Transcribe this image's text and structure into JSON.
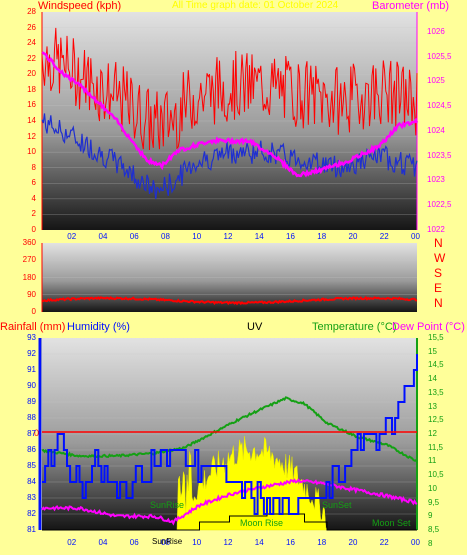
{
  "panel1": {
    "left_title": "Windspeed (kph)",
    "center_title": "All Time graph date: 01 October 2024",
    "right_title": "Barometer (mb)",
    "left_ticks": [
      "0",
      "2",
      "4",
      "6",
      "8",
      "10",
      "12",
      "14",
      "16",
      "18",
      "20",
      "22",
      "24",
      "26",
      "28"
    ],
    "right_ticks": [
      "1022",
      "1022,5",
      "1023",
      "1023,5",
      "1024",
      "1024,5",
      "1025",
      "1025,5",
      "1026"
    ],
    "colors": {
      "gust": "#ff0000",
      "avg": "#1f2fd0",
      "baro": "#ff00ff"
    }
  },
  "panel2": {
    "left_ticks": [
      "0",
      "90",
      "180",
      "270",
      "360"
    ],
    "compass": [
      "N",
      "W",
      "S",
      "E",
      "N"
    ],
    "colors": {
      "dir": "#ff0000"
    }
  },
  "panel3": {
    "rain_title": "Rainfall (mm)",
    "hum_title": "Humidity (%)",
    "uv_title": "UV",
    "temp_title": "Temperature (°C)",
    "dew_title": "Dew Point (°C)",
    "rain_zero": "0",
    "hum_ticks": [
      "81",
      "82",
      "83",
      "84",
      "85",
      "86",
      "87",
      "88",
      "89",
      "90",
      "91",
      "92",
      "93"
    ],
    "temp_ticks": [
      "8",
      "8,5",
      "9",
      "9,5",
      "10",
      "10,5",
      "11",
      "11,5",
      "12",
      "12,5",
      "13",
      "13,5",
      "14",
      "14,5",
      "15",
      "15,5"
    ],
    "annotations": {
      "sunrise": "SunRise",
      "sunset": "SunSet",
      "sunrise2": "SunRise",
      "moonrise": "Moon Rise",
      "moonset": "Moon Set"
    },
    "colors": {
      "temp": "#14a014",
      "dew": "#ff00ff",
      "hum": "#0010ff",
      "uv": "#ffff00",
      "rain": "#ff0000"
    }
  },
  "x_ticks": [
    "02",
    "04",
    "06",
    "08",
    "10",
    "12",
    "14",
    "16",
    "18",
    "20",
    "22",
    "00"
  ]
}
